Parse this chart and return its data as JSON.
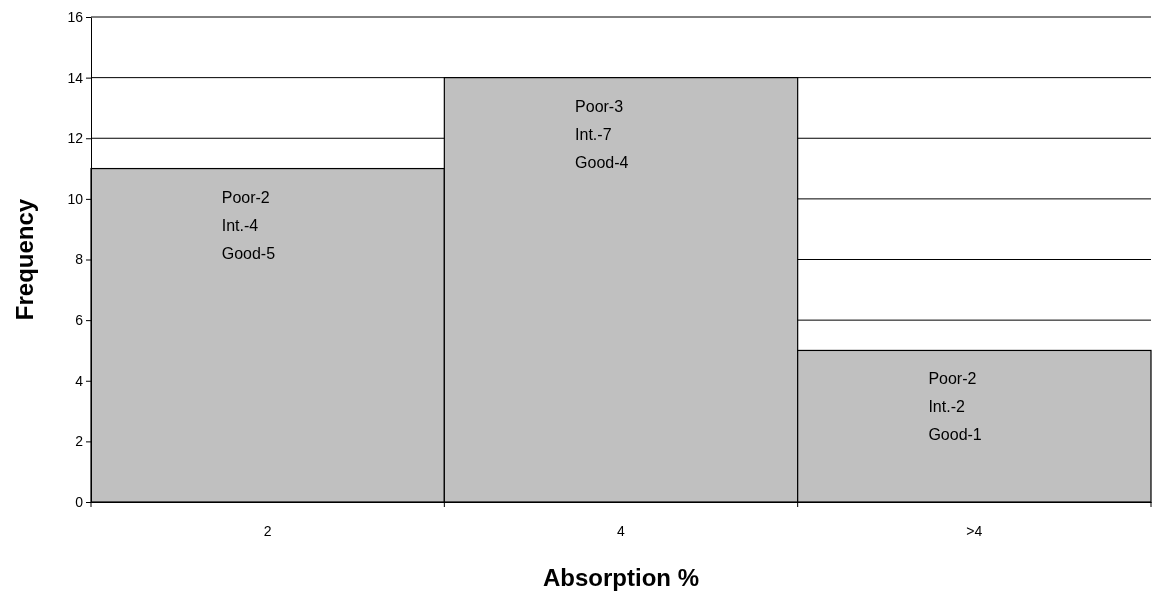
{
  "chart_data": {
    "type": "bar",
    "xlabel": "Absorption %",
    "ylabel": "Frequency",
    "categories": [
      "2",
      "4",
      ">4"
    ],
    "values": [
      11,
      14,
      5
    ],
    "color": "#c0c0c0",
    "ylim": [
      0,
      16
    ],
    "yticks": [
      0,
      2,
      4,
      6,
      8,
      10,
      12,
      14,
      16
    ],
    "grid": "y",
    "annotations": [
      "Poor-2\nInt.-4\nGood-5",
      "Poor-3\nInt.-7\nGood-4",
      "Poor-2\nInt.-2\nGood-1"
    ]
  }
}
